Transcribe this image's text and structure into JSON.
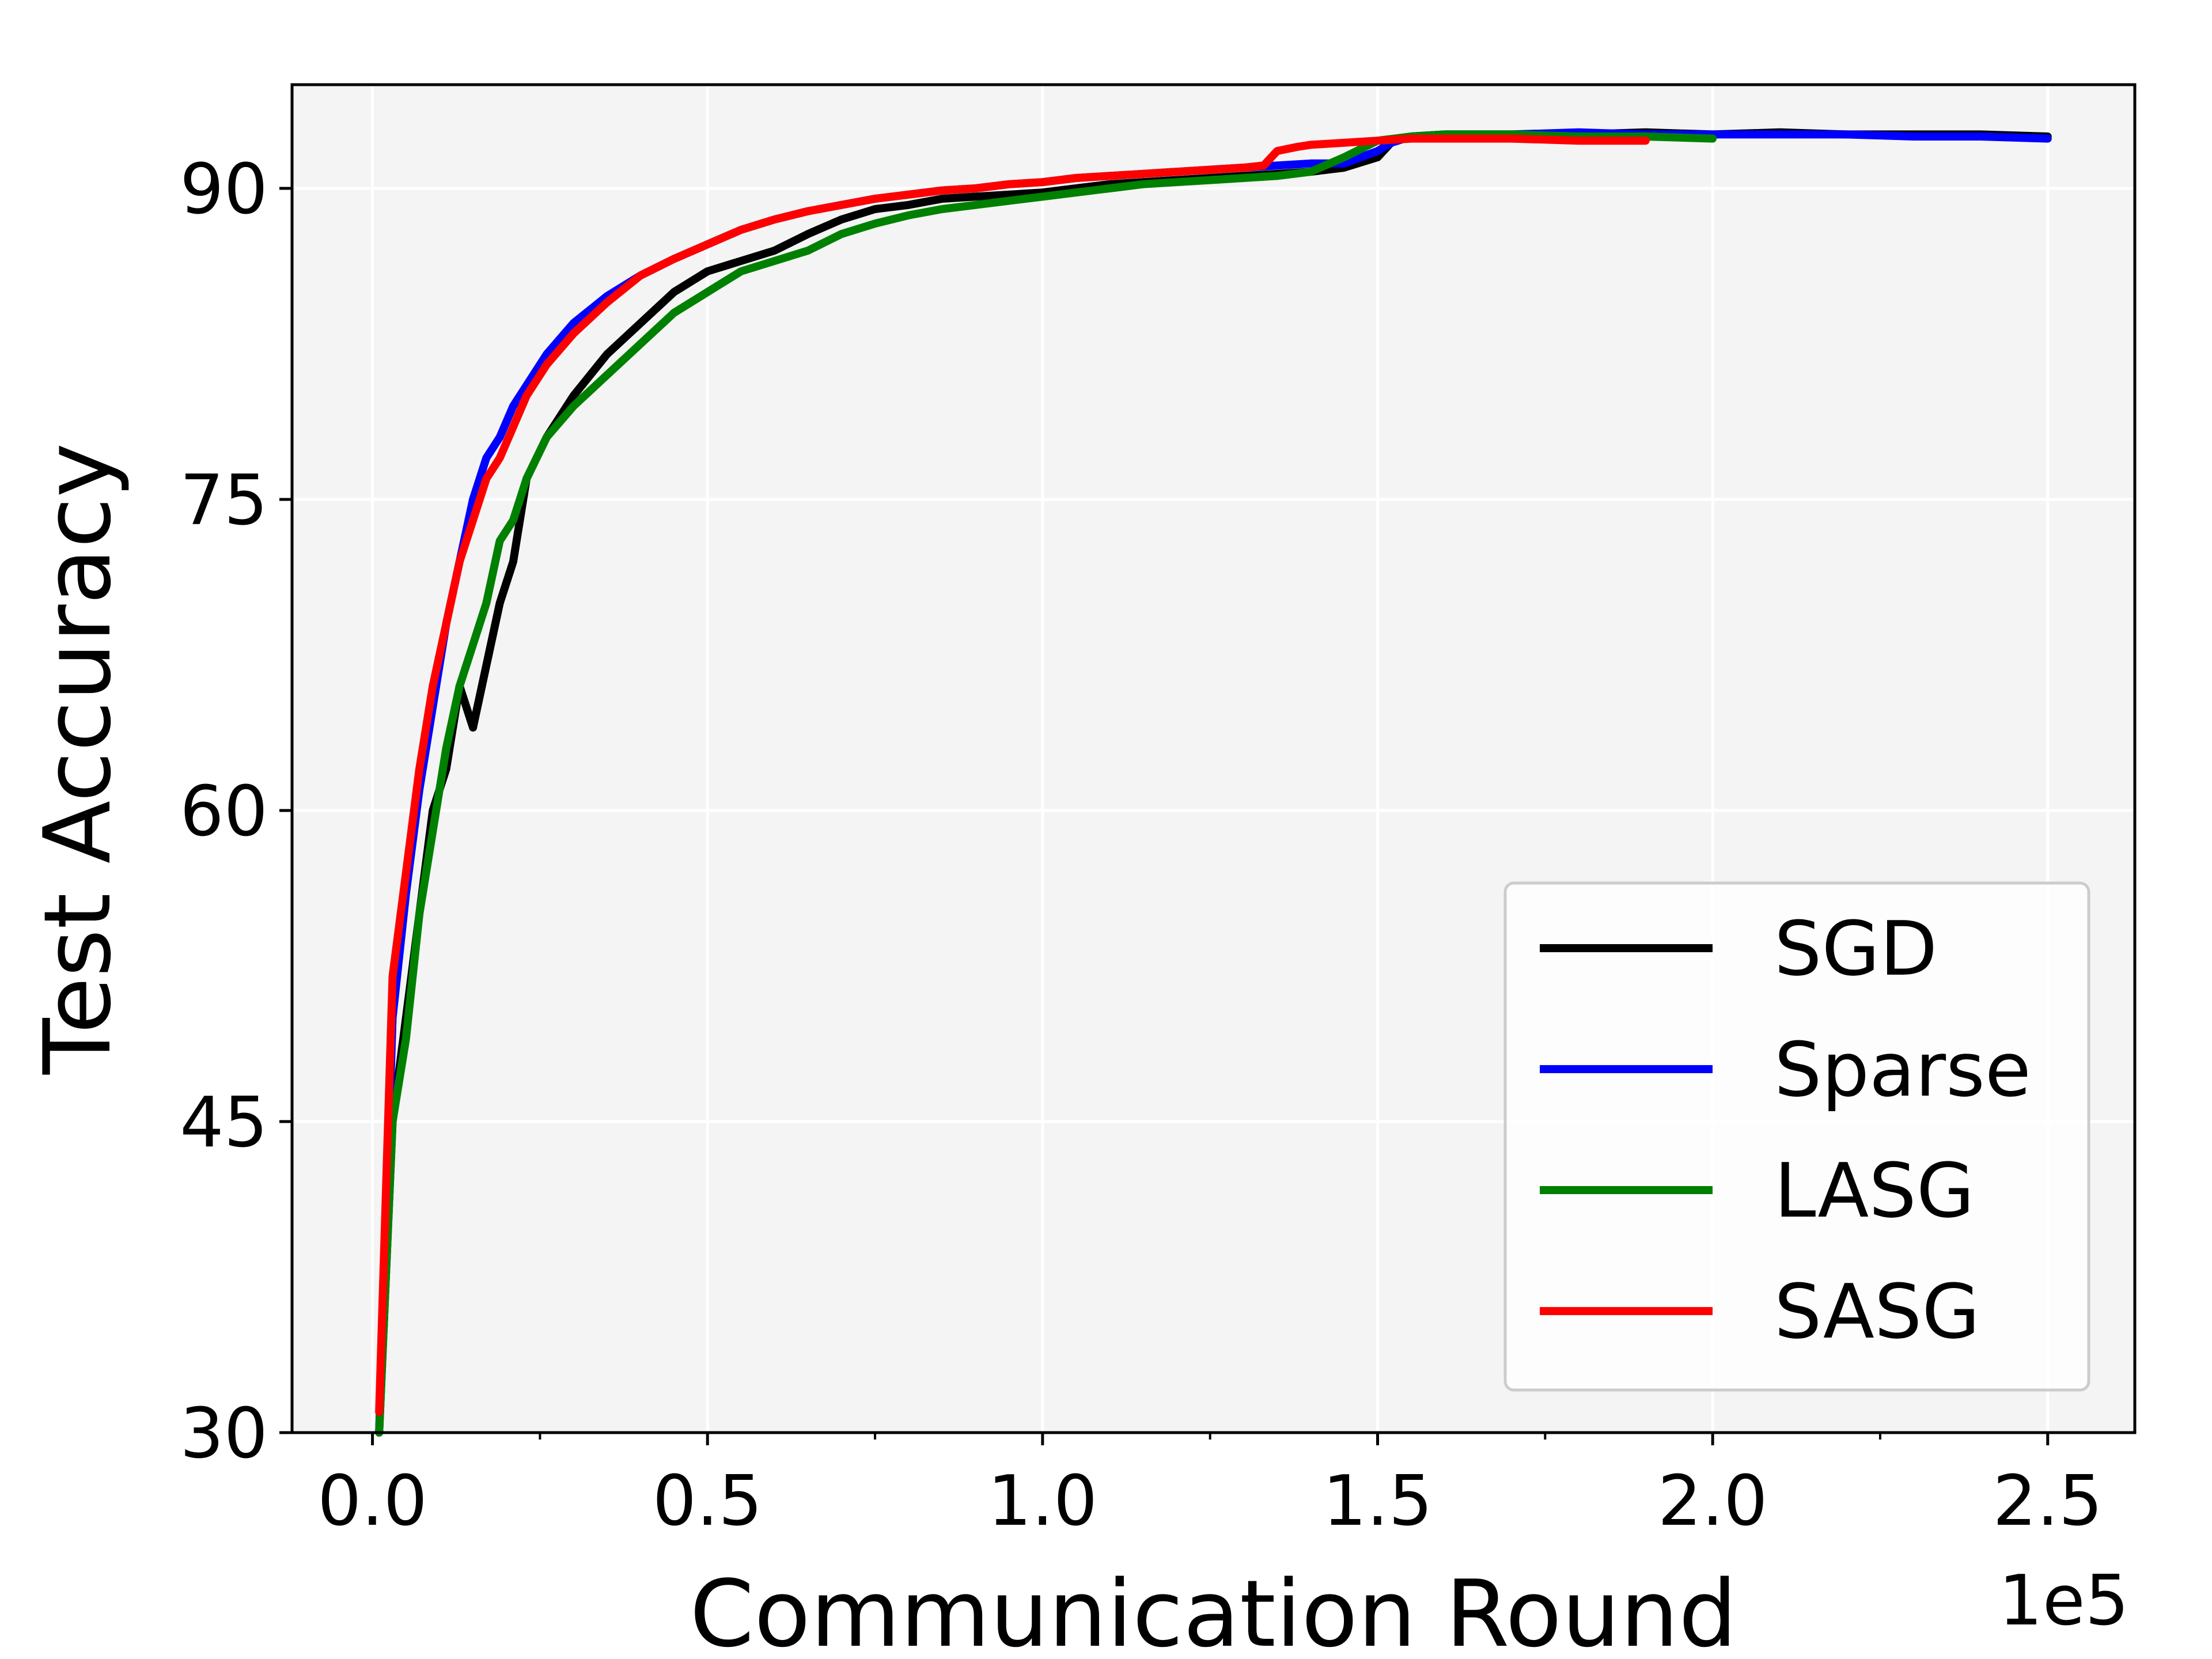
{
  "chart_data": {
    "type": "line",
    "xlabel": "Communication Round",
    "ylabel": "Test Accuracy",
    "x_offset_label": "1e5",
    "xlim": [
      -0.12,
      2.63
    ],
    "ylim": [
      30,
      95
    ],
    "xticks": [
      0.0,
      0.5,
      1.0,
      1.5,
      2.0,
      2.5
    ],
    "xtick_labels": [
      "0.0",
      "0.5",
      "1.0",
      "1.5",
      "2.0",
      "2.5"
    ],
    "yticks": [
      30,
      45,
      60,
      75,
      90
    ],
    "ytick_labels": [
      "30",
      "45",
      "60",
      "75",
      "90"
    ],
    "grid": true,
    "legend_position": "lower-right",
    "series": [
      {
        "name": "SGD",
        "color": "#000000",
        "x": [
          0.01,
          0.03,
          0.05,
          0.07,
          0.09,
          0.11,
          0.13,
          0.15,
          0.17,
          0.19,
          0.21,
          0.23,
          0.26,
          0.3,
          0.35,
          0.4,
          0.45,
          0.5,
          0.55,
          0.6,
          0.65,
          0.7,
          0.75,
          0.8,
          0.85,
          0.9,
          0.95,
          1.0,
          1.05,
          1.1,
          1.15,
          1.2,
          1.25,
          1.3,
          1.35,
          1.4,
          1.45,
          1.5,
          1.52,
          1.55,
          1.6,
          1.7,
          1.8,
          1.9,
          2.0,
          2.1,
          2.2,
          2.3,
          2.4,
          2.5
        ],
        "y": [
          30,
          45,
          50,
          55,
          60,
          62,
          66,
          64,
          67,
          70,
          72,
          76,
          78,
          80,
          82,
          83.5,
          85,
          86,
          86.5,
          87,
          87.8,
          88.5,
          89,
          89.2,
          89.5,
          89.6,
          89.7,
          89.8,
          90,
          90.2,
          90.3,
          90.4,
          90.5,
          90.6,
          90.7,
          90.8,
          91,
          91.5,
          92.2,
          92.5,
          92.6,
          92.6,
          92.6,
          92.7,
          92.6,
          92.7,
          92.6,
          92.6,
          92.6,
          92.5
        ]
      },
      {
        "name": "Sparse",
        "color": "#0000ff",
        "x": [
          0.01,
          0.03,
          0.05,
          0.07,
          0.09,
          0.11,
          0.13,
          0.15,
          0.17,
          0.19,
          0.21,
          0.23,
          0.26,
          0.3,
          0.35,
          0.4,
          0.45,
          0.5,
          0.55,
          0.6,
          0.65,
          0.7,
          0.75,
          0.8,
          0.85,
          0.9,
          0.95,
          1.0,
          1.05,
          1.1,
          1.15,
          1.2,
          1.25,
          1.3,
          1.35,
          1.4,
          1.45,
          1.5,
          1.52,
          1.55,
          1.6,
          1.7,
          1.8,
          1.9,
          2.0,
          2.1,
          2.2,
          2.3,
          2.4,
          2.5
        ],
        "y": [
          30,
          50,
          56,
          61,
          65,
          69,
          72,
          75,
          77,
          78,
          79.5,
          80.5,
          82,
          83.5,
          84.8,
          85.8,
          86.6,
          87.3,
          88,
          88.5,
          88.9,
          89.2,
          89.5,
          89.7,
          89.9,
          90,
          90.2,
          90.3,
          90.5,
          90.6,
          90.7,
          90.8,
          90.9,
          91,
          91.1,
          91.2,
          91.2,
          91.8,
          92.2,
          92.5,
          92.6,
          92.6,
          92.7,
          92.6,
          92.6,
          92.6,
          92.6,
          92.5,
          92.5,
          92.4
        ]
      },
      {
        "name": "LASG",
        "color": "#008000",
        "x": [
          0.01,
          0.03,
          0.05,
          0.07,
          0.09,
          0.11,
          0.13,
          0.15,
          0.17,
          0.19,
          0.21,
          0.23,
          0.26,
          0.3,
          0.35,
          0.4,
          0.45,
          0.5,
          0.55,
          0.6,
          0.65,
          0.7,
          0.75,
          0.8,
          0.85,
          0.9,
          0.95,
          1.0,
          1.05,
          1.1,
          1.15,
          1.2,
          1.25,
          1.3,
          1.35,
          1.4,
          1.45,
          1.5,
          1.55,
          1.6,
          1.7,
          1.8,
          1.9,
          2.0
        ],
        "y": [
          30,
          45,
          49,
          55,
          59,
          63,
          66,
          68,
          70,
          73,
          74,
          76,
          78,
          79.5,
          81,
          82.5,
          84,
          85,
          86,
          86.5,
          87,
          87.8,
          88.3,
          88.7,
          89,
          89.2,
          89.4,
          89.6,
          89.8,
          90,
          90.2,
          90.3,
          90.4,
          90.5,
          90.6,
          90.8,
          91.5,
          92.3,
          92.5,
          92.6,
          92.6,
          92.5,
          92.5,
          92.4
        ]
      },
      {
        "name": "SASG",
        "color": "#ff0000",
        "x": [
          0.01,
          0.03,
          0.05,
          0.07,
          0.09,
          0.11,
          0.13,
          0.15,
          0.17,
          0.19,
          0.21,
          0.23,
          0.26,
          0.3,
          0.35,
          0.4,
          0.45,
          0.5,
          0.55,
          0.6,
          0.65,
          0.7,
          0.75,
          0.8,
          0.85,
          0.9,
          0.95,
          1.0,
          1.05,
          1.1,
          1.15,
          1.2,
          1.25,
          1.3,
          1.33,
          1.35,
          1.38,
          1.4,
          1.45,
          1.5,
          1.55,
          1.6,
          1.7,
          1.8,
          1.9
        ],
        "y": [
          31,
          52,
          57,
          62,
          66,
          69,
          72,
          74,
          76,
          77,
          78.5,
          80,
          81.5,
          83,
          84.5,
          85.8,
          86.6,
          87.3,
          88,
          88.5,
          88.9,
          89.2,
          89.5,
          89.7,
          89.9,
          90,
          90.2,
          90.3,
          90.5,
          90.6,
          90.7,
          90.8,
          90.9,
          91,
          91.1,
          91.8,
          92,
          92.1,
          92.2,
          92.3,
          92.4,
          92.4,
          92.4,
          92.3,
          92.3
        ]
      }
    ]
  }
}
